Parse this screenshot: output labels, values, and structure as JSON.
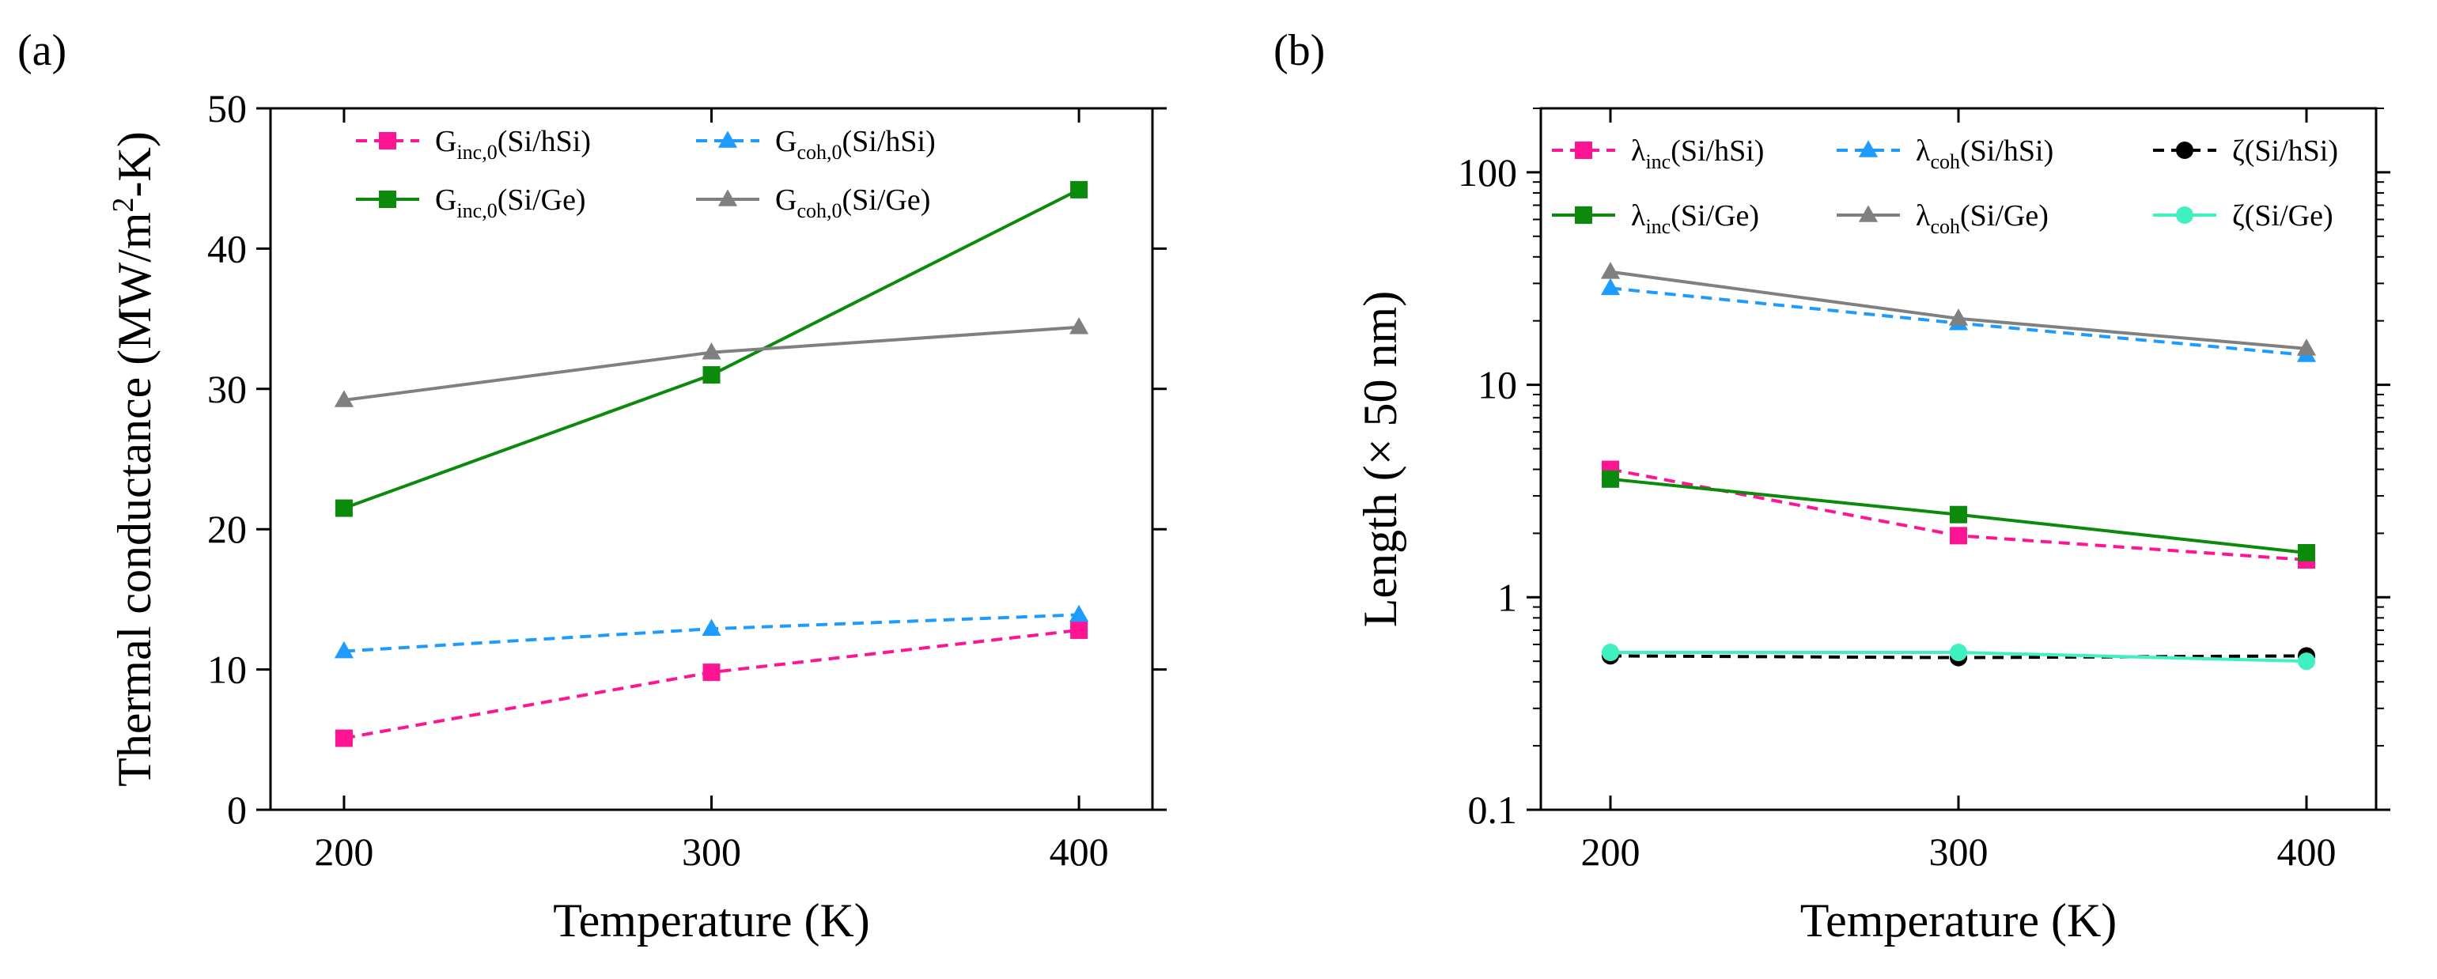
{
  "chart_data": [
    {
      "panel": "(a)",
      "type": "line",
      "xlabel": "Temperature (K)",
      "ylabel": {
        "base": "Thermal conductance (MW/m",
        "sup": "2",
        "rest": "-K)"
      },
      "xlim": [
        180,
        420
      ],
      "ylim": [
        0,
        50
      ],
      "xticks": [
        200,
        300,
        400
      ],
      "yticks": [
        0,
        10,
        20,
        30,
        40,
        50
      ],
      "grid": false,
      "legend_position": "top",
      "series": [
        {
          "id": "g-inc-si-hsi",
          "sym": "G",
          "sub": "inc,0",
          "suffix": "(Si/hSi)",
          "color": "#ff1493",
          "dash": true,
          "marker": "square",
          "x": [
            200,
            300,
            400
          ],
          "y": [
            5.1,
            9.8,
            12.8
          ]
        },
        {
          "id": "g-coh-si-hsi",
          "sym": "G",
          "sub": "coh,0",
          "suffix": "(Si/hSi)",
          "color": "#1e9bff",
          "dash": true,
          "marker": "triangle",
          "x": [
            200,
            300,
            400
          ],
          "y": [
            11.3,
            12.9,
            13.9
          ]
        },
        {
          "id": "g-inc-si-ge",
          "sym": "G",
          "sub": "inc,0",
          "suffix": "(Si/Ge)",
          "color": "#0b8a0b",
          "dash": false,
          "marker": "square",
          "x": [
            200,
            300,
            400
          ],
          "y": [
            21.5,
            31.0,
            44.2
          ]
        },
        {
          "id": "g-coh-si-ge",
          "sym": "G",
          "sub": "coh,0",
          "suffix": "(Si/Ge)",
          "color": "#808080",
          "dash": false,
          "marker": "triangle",
          "x": [
            200,
            300,
            400
          ],
          "y": [
            29.2,
            32.6,
            34.4
          ]
        }
      ]
    },
    {
      "panel": "(b)",
      "type": "line",
      "xlabel": "Temperature (K)",
      "ylabel": {
        "base": "Length (× 50 nm)",
        "sup": "",
        "rest": ""
      },
      "xlim": [
        180,
        420
      ],
      "ylim": [
        0.1,
        200
      ],
      "yscale": "log",
      "xticks": [
        200,
        300,
        400
      ],
      "yticks": [
        0.1,
        1,
        10,
        100
      ],
      "ytick_labels": [
        "0.1",
        "1",
        "10",
        "100"
      ],
      "grid": false,
      "legend_position": "top",
      "series": [
        {
          "id": "lambda-inc-si-hsi",
          "sym": "λ",
          "sub": "inc",
          "suffix": "(Si/hSi)",
          "color": "#ff1493",
          "dash": true,
          "marker": "square",
          "x": [
            200,
            300,
            400
          ],
          "y": [
            4.0,
            1.95,
            1.5
          ]
        },
        {
          "id": "lambda-coh-si-hsi",
          "sym": "λ",
          "sub": "coh",
          "suffix": "(Si/hSi)",
          "color": "#1e9bff",
          "dash": true,
          "marker": "triangle",
          "x": [
            200,
            300,
            400
          ],
          "y": [
            28.5,
            19.5,
            13.8
          ]
        },
        {
          "id": "zeta-si-hsi",
          "sym": "ζ",
          "sub": "",
          "suffix": "(Si/hSi)",
          "color": "#000000",
          "dash": true,
          "marker": "circle",
          "x": [
            200,
            300,
            400
          ],
          "y": [
            0.53,
            0.52,
            0.53
          ]
        },
        {
          "id": "lambda-inc-si-ge",
          "sym": "λ",
          "sub": "inc",
          "suffix": "(Si/Ge)",
          "color": "#0b8a0b",
          "dash": false,
          "marker": "square",
          "x": [
            200,
            300,
            400
          ],
          "y": [
            3.6,
            2.45,
            1.62
          ]
        },
        {
          "id": "lambda-coh-si-ge",
          "sym": "λ",
          "sub": "coh",
          "suffix": "(Si/Ge)",
          "color": "#808080",
          "dash": false,
          "marker": "triangle",
          "x": [
            200,
            300,
            400
          ],
          "y": [
            34.0,
            20.5,
            14.8
          ]
        },
        {
          "id": "zeta-si-ge",
          "sym": "ζ",
          "sub": "",
          "suffix": "(Si/Ge)",
          "color": "#3ff0c0",
          "dash": false,
          "marker": "circle",
          "x": [
            200,
            300,
            400
          ],
          "y": [
            0.55,
            0.55,
            0.5
          ]
        }
      ]
    }
  ]
}
